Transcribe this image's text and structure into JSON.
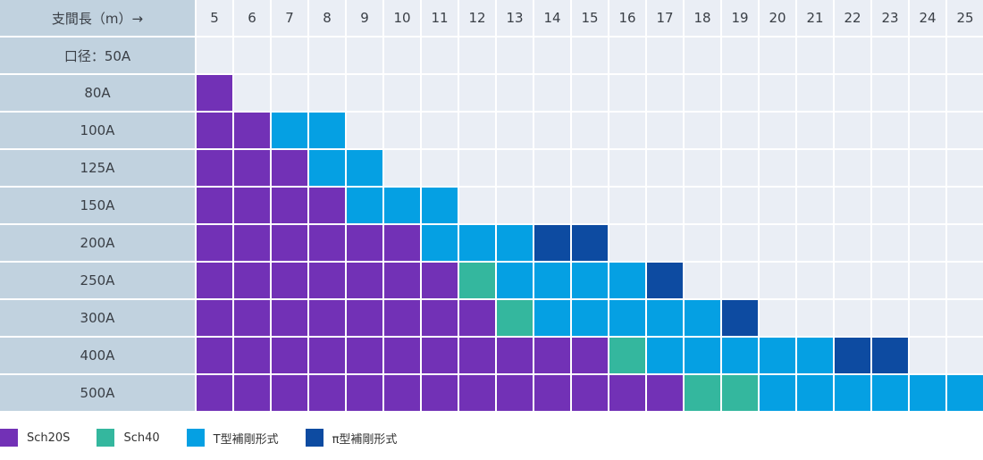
{
  "colors": {
    "Sch20S": "#7231b6",
    "Sch40": "#34b79e",
    "T": "#05a0e3",
    "Pi": "#0d4ba1",
    "empty": "#eaeef5",
    "header": "#c1d2df"
  },
  "chart_data": {
    "type": "table",
    "corner_label": "支間長（m）→",
    "spans": [
      5,
      6,
      7,
      8,
      9,
      10,
      11,
      12,
      13,
      14,
      15,
      16,
      17,
      18,
      19,
      20,
      21,
      22,
      23,
      24,
      25
    ],
    "rows": [
      {
        "label": "口径：50A",
        "cells": []
      },
      {
        "label": "80A",
        "cells": [
          "Sch20S"
        ]
      },
      {
        "label": "100A",
        "cells": [
          "Sch20S",
          "Sch20S",
          "T",
          "T"
        ]
      },
      {
        "label": "125A",
        "cells": [
          "Sch20S",
          "Sch20S",
          "Sch20S",
          "T",
          "T"
        ]
      },
      {
        "label": "150A",
        "cells": [
          "Sch20S",
          "Sch20S",
          "Sch20S",
          "Sch20S",
          "T",
          "T",
          "T"
        ]
      },
      {
        "label": "200A",
        "cells": [
          "Sch20S",
          "Sch20S",
          "Sch20S",
          "Sch20S",
          "Sch20S",
          "Sch20S",
          "T",
          "T",
          "T",
          "Pi",
          "Pi"
        ]
      },
      {
        "label": "250A",
        "cells": [
          "Sch20S",
          "Sch20S",
          "Sch20S",
          "Sch20S",
          "Sch20S",
          "Sch20S",
          "Sch20S",
          "Sch40",
          "T",
          "T",
          "T",
          "T",
          "Pi"
        ]
      },
      {
        "label": "300A",
        "cells": [
          "Sch20S",
          "Sch20S",
          "Sch20S",
          "Sch20S",
          "Sch20S",
          "Sch20S",
          "Sch20S",
          "Sch20S",
          "Sch40",
          "T",
          "T",
          "T",
          "T",
          "T",
          "Pi"
        ]
      },
      {
        "label": "400A",
        "cells": [
          "Sch20S",
          "Sch20S",
          "Sch20S",
          "Sch20S",
          "Sch20S",
          "Sch20S",
          "Sch20S",
          "Sch20S",
          "Sch20S",
          "Sch20S",
          "Sch20S",
          "Sch40",
          "T",
          "T",
          "T",
          "T",
          "T",
          "Pi",
          "Pi"
        ]
      },
      {
        "label": "500A",
        "cells": [
          "Sch20S",
          "Sch20S",
          "Sch20S",
          "Sch20S",
          "Sch20S",
          "Sch20S",
          "Sch20S",
          "Sch20S",
          "Sch20S",
          "Sch20S",
          "Sch20S",
          "Sch20S",
          "Sch20S",
          "Sch40",
          "Sch40",
          "T",
          "T",
          "T",
          "T",
          "T",
          "T"
        ]
      }
    ],
    "legend": [
      {
        "key": "Sch20S",
        "label": "Sch20S"
      },
      {
        "key": "Sch40",
        "label": "Sch40"
      },
      {
        "key": "T",
        "label": "T型補剛形式"
      },
      {
        "key": "Pi",
        "label": "π型補剛形式"
      }
    ]
  }
}
